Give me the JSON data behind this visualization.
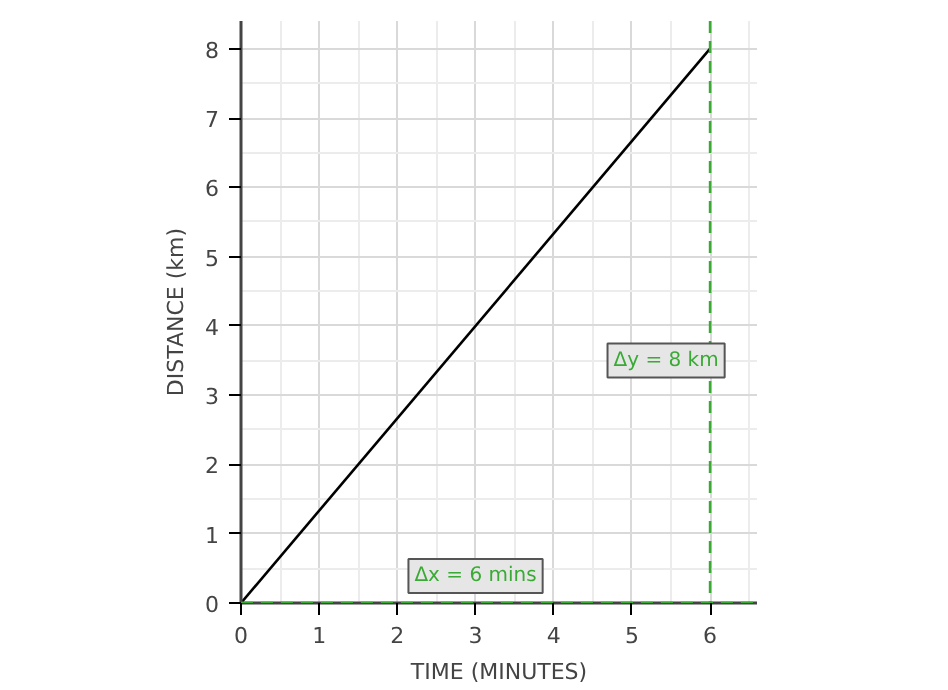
{
  "chart_data": {
    "type": "line",
    "xlabel": "TIME (MINUTES)",
    "ylabel": "DISTANCE (km)",
    "x": [
      0,
      6
    ],
    "series": [
      {
        "color": "#000000",
        "values": [
          0,
          8
        ]
      }
    ],
    "xlim": [
      0,
      6.6
    ],
    "ylim": [
      0,
      8.4
    ],
    "xticks": [
      0,
      1,
      2,
      3,
      4,
      5,
      6
    ],
    "yticks": [
      0,
      1,
      2,
      3,
      4,
      5,
      6,
      7,
      8
    ],
    "grid": true,
    "line_style": "solid",
    "ref_lines": [
      {
        "axis": "x",
        "value": 6,
        "color": "#3aaa35",
        "line_style": "dashed"
      },
      {
        "axis": "y",
        "value": 0,
        "color": "#3aaa35",
        "line_style": "dashed"
      }
    ],
    "annotations": [
      {
        "text": "Δy = 8 km",
        "x": 6,
        "y": 3.5
      },
      {
        "text": "Δx = 6 mins",
        "x": 3,
        "y": 0
      }
    ]
  }
}
